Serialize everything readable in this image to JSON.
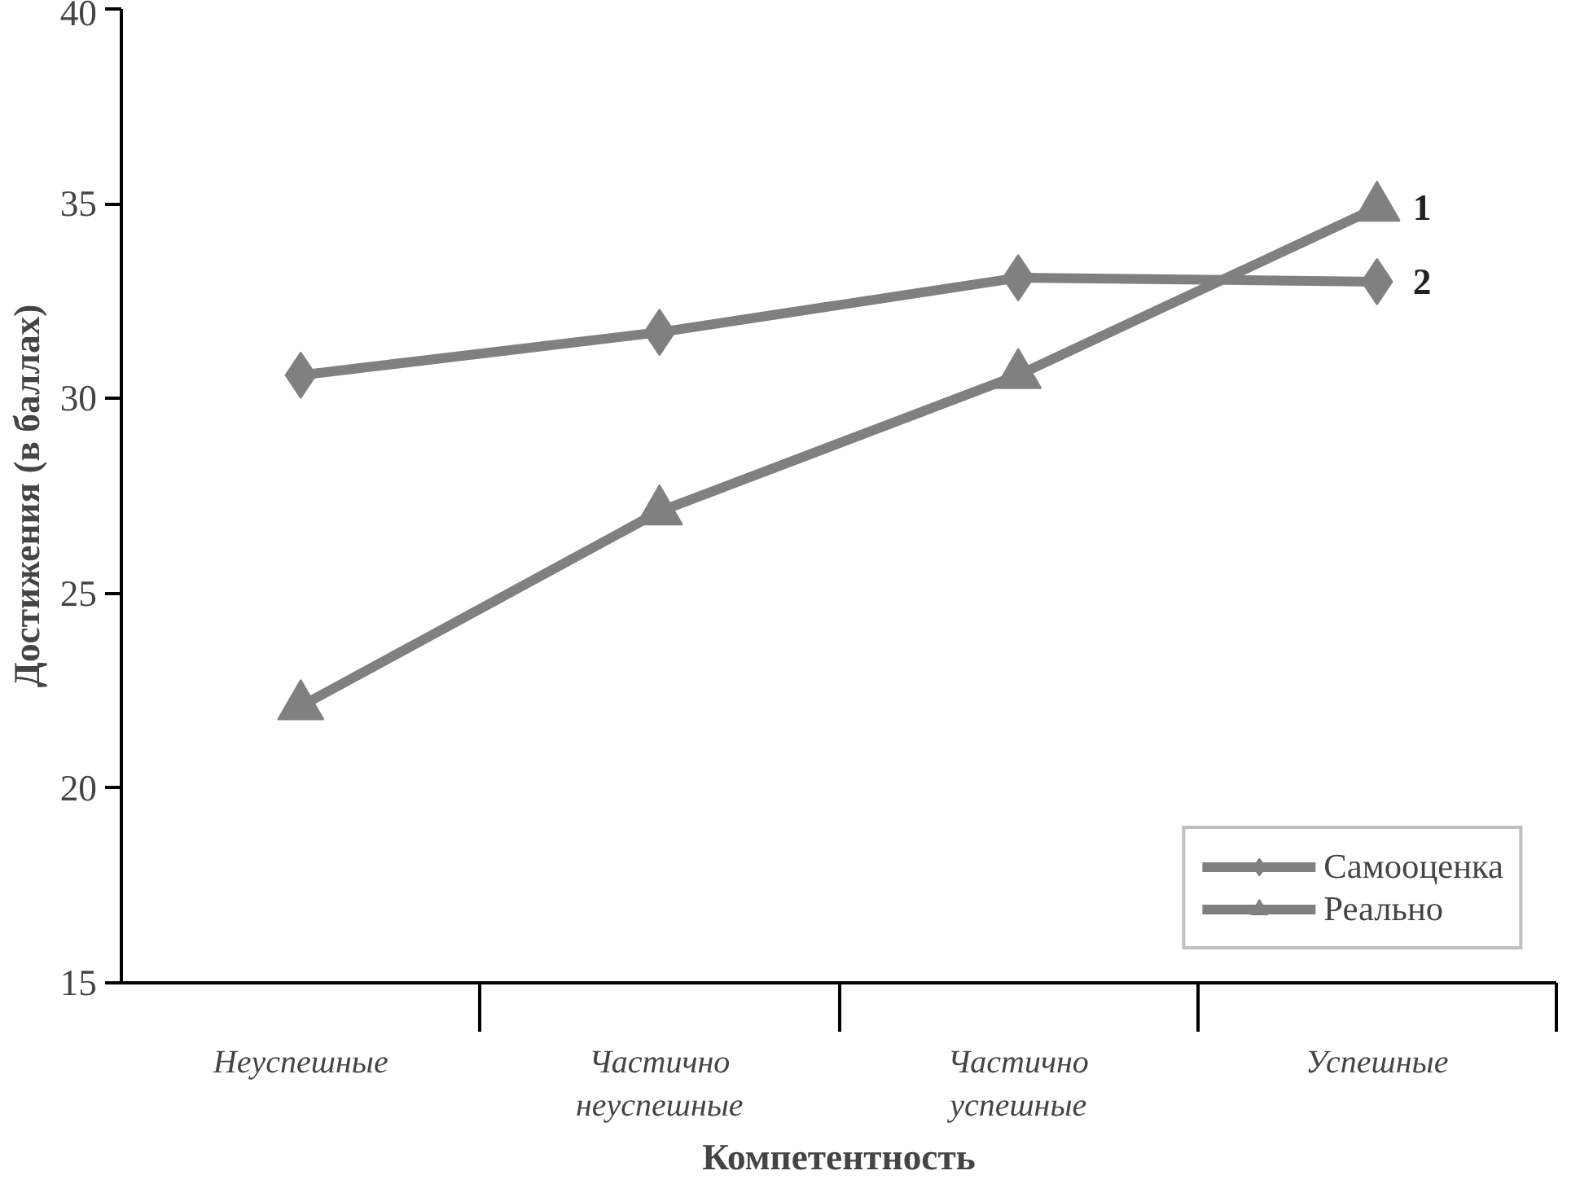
{
  "chart_data": {
    "type": "line",
    "xlabel": "Компетентность",
    "ylabel": "Достижения (в баллах)",
    "categories": [
      "Неуспешные",
      "Частично неуспешные",
      "Частично успешные",
      "Успешные"
    ],
    "series": [
      {
        "name": "Самооценка",
        "color": "#808080",
        "marker": "diamond",
        "values": [
          30.6,
          31.7,
          33.1,
          33.0
        ]
      },
      {
        "name": "Реально",
        "color": "#808080",
        "marker": "triangle",
        "values": [
          22.1,
          27.1,
          30.6,
          34.9
        ]
      }
    ],
    "ylim": [
      15,
      40
    ],
    "yticks": [
      15,
      20,
      25,
      30,
      35,
      40
    ],
    "grid": false,
    "legend": "bottom right",
    "annotations": [
      {
        "text": "1",
        "x": "Успешные",
        "y": 34.9
      },
      {
        "text": "2",
        "x": "Успешные",
        "y": 33.0
      }
    ]
  }
}
